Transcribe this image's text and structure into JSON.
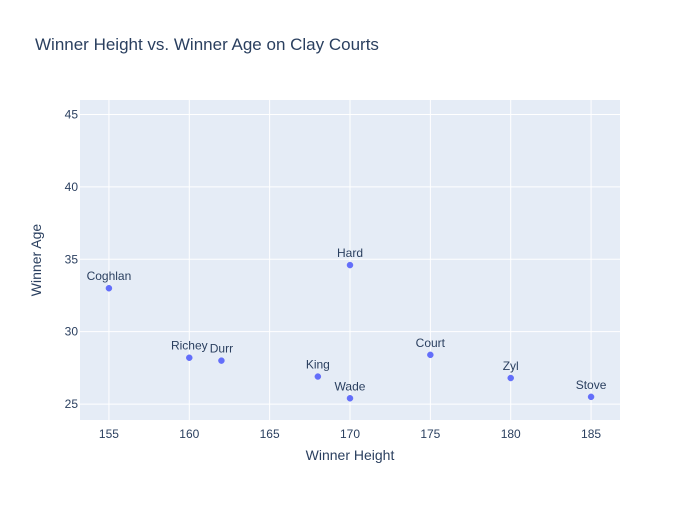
{
  "chart_data": {
    "type": "scatter",
    "title": "Winner Height vs. Winner Age on Clay Courts",
    "xlabel": "Winner Height",
    "ylabel": "Winner Age",
    "xlim": [
      153.2,
      186.8
    ],
    "ylim": [
      23.9,
      46.0
    ],
    "x_ticks": [
      155,
      160,
      165,
      170,
      175,
      180,
      185
    ],
    "y_ticks": [
      25,
      30,
      35,
      40,
      45
    ],
    "grid": true,
    "legend": "none",
    "colors": {
      "marker": "#636efa",
      "plot_bg": "#e5ecf6",
      "grid": "#ffffff",
      "text": "#2a3f5f",
      "title": "#2a3f5f"
    },
    "points": [
      {
        "label": "Coghlan",
        "x": 155,
        "y": 33.0
      },
      {
        "label": "Richey",
        "x": 160,
        "y": 28.2
      },
      {
        "label": "Durr",
        "x": 162,
        "y": 28.0
      },
      {
        "label": "King",
        "x": 168,
        "y": 26.9
      },
      {
        "label": "Hard",
        "x": 170,
        "y": 34.6
      },
      {
        "label": "Wade",
        "x": 170,
        "y": 25.4
      },
      {
        "label": "Court",
        "x": 175,
        "y": 28.4
      },
      {
        "label": "Zyl",
        "x": 180,
        "y": 26.8
      },
      {
        "label": "Stove",
        "x": 185,
        "y": 25.5
      }
    ]
  }
}
